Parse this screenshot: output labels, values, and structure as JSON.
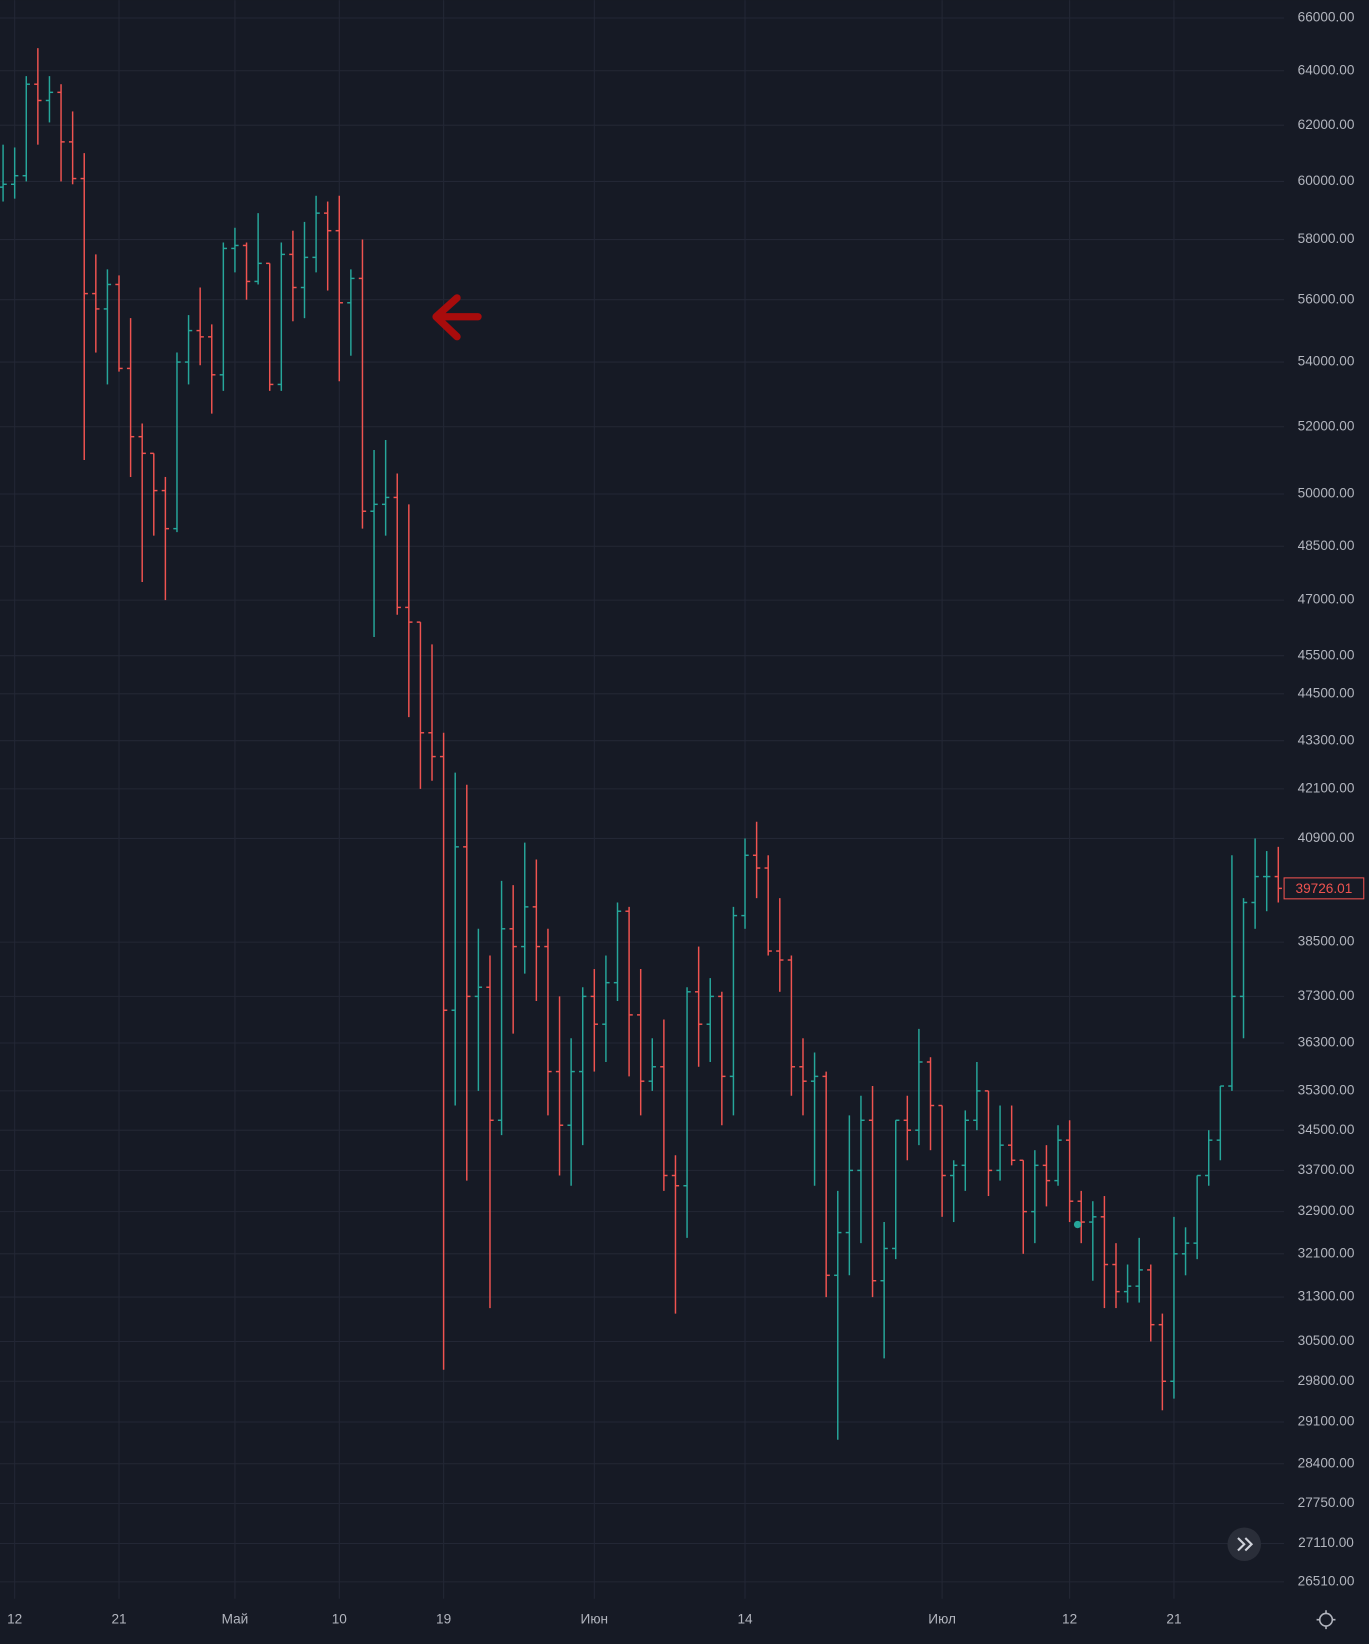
{
  "chart_data": {
    "type": "ohlc",
    "log_scale": true,
    "grid": true,
    "up_color": "#26a69a",
    "down_color": "#ef5350",
    "categories": [
      null,
      "12",
      null,
      null,
      null,
      null,
      null,
      null,
      null,
      null,
      "21",
      null,
      null,
      null,
      null,
      null,
      null,
      null,
      null,
      null,
      "Май",
      null,
      null,
      null,
      null,
      null,
      null,
      null,
      null,
      "10",
      null,
      null,
      null,
      null,
      null,
      null,
      null,
      null,
      "19",
      null,
      null,
      null,
      null,
      null,
      null,
      null,
      null,
      null,
      null,
      null,
      null,
      "Июн",
      null,
      null,
      null,
      null,
      null,
      null,
      null,
      null,
      null,
      null,
      null,
      null,
      "14",
      null,
      null,
      null,
      null,
      null,
      null,
      null,
      null,
      null,
      null,
      null,
      null,
      null,
      null,
      null,
      null,
      "Июл",
      null,
      null,
      null,
      null,
      null,
      null,
      null,
      null,
      null,
      null,
      "12",
      null,
      null,
      null,
      null,
      null,
      null,
      null,
      null,
      "21",
      null,
      null,
      null,
      null,
      null,
      null,
      null,
      null,
      null
    ],
    "open": [
      59800,
      59900,
      60200,
      63500,
      62900,
      63200,
      61400,
      60100,
      56200,
      55700,
      56500,
      53800,
      51700,
      51200,
      50100,
      49000,
      54000,
      55000,
      54800,
      53600,
      57700,
      57800,
      56600,
      57200,
      53300,
      57500,
      56400,
      57400,
      58900,
      58300,
      55900,
      56700,
      49500,
      49700,
      49900,
      46800,
      46400,
      43500,
      42900,
      37000,
      40700,
      37300,
      37500,
      34700,
      38800,
      38400,
      39300,
      38400,
      35700,
      34600,
      35700,
      37300,
      36700,
      37600,
      39200,
      36900,
      35500,
      35800,
      33600,
      33400,
      37400,
      36700,
      37300,
      35600,
      39100,
      40500,
      40200,
      38300,
      38100,
      35800,
      35500,
      35600,
      31700,
      32500,
      33700,
      34700,
      31600,
      32200,
      34700,
      34500,
      35900,
      35000,
      33600,
      33800,
      34700,
      35300,
      33700,
      34200,
      33900,
      32900,
      33800,
      33500,
      34300,
      33100,
      32700,
      32800,
      31900,
      31400,
      31500,
      31800,
      30800,
      29800,
      32100,
      32300,
      33600,
      34300,
      35400,
      37300,
      39400,
      40000,
      40000
    ],
    "high": [
      61300,
      61200,
      63800,
      64850,
      63800,
      63500,
      62500,
      61000,
      57500,
      57000,
      56800,
      55400,
      52100,
      51200,
      50500,
      54300,
      55500,
      56400,
      55200,
      57900,
      58400,
      57900,
      58900,
      57200,
      57900,
      58300,
      58600,
      59500,
      59300,
      59500,
      57000,
      58000,
      51300,
      51600,
      50600,
      49700,
      46400,
      45800,
      43500,
      42500,
      42200,
      38800,
      38200,
      39900,
      39800,
      40800,
      40400,
      38800,
      37300,
      36400,
      37500,
      37900,
      38200,
      39400,
      39300,
      37900,
      36400,
      36800,
      34000,
      37500,
      38400,
      37700,
      37400,
      39300,
      40900,
      41300,
      40500,
      39500,
      38200,
      36400,
      36100,
      35700,
      33300,
      34800,
      35200,
      35400,
      32700,
      34700,
      35200,
      36600,
      36000,
      35000,
      33900,
      34900,
      35900,
      35300,
      35000,
      35000,
      33900,
      34100,
      34200,
      34600,
      34700,
      33300,
      33100,
      33200,
      32300,
      31900,
      32400,
      31900,
      31000,
      32800,
      32600,
      33600,
      34500,
      35400,
      40500,
      39500,
      40900,
      40600,
      40700
    ],
    "low": [
      59300,
      59400,
      60000,
      61300,
      62100,
      60000,
      59900,
      51000,
      54300,
      53300,
      53700,
      50500,
      47500,
      48800,
      47000,
      48900,
      53300,
      53900,
      52400,
      53100,
      56900,
      56000,
      56500,
      53100,
      53100,
      55300,
      55400,
      56900,
      56300,
      53400,
      54200,
      49000,
      46000,
      48800,
      46600,
      43900,
      42100,
      42300,
      30000,
      35000,
      33500,
      35300,
      31100,
      34400,
      36500,
      37800,
      37200,
      34800,
      33600,
      33400,
      34200,
      35700,
      35900,
      37200,
      35600,
      34800,
      35300,
      33300,
      31000,
      32400,
      35800,
      35900,
      34600,
      34800,
      38800,
      39500,
      38200,
      37400,
      35200,
      34800,
      33400,
      31300,
      28800,
      31700,
      32300,
      31300,
      30200,
      32000,
      33900,
      34200,
      34100,
      32800,
      32700,
      33300,
      34500,
      33200,
      33500,
      33800,
      32100,
      32300,
      33000,
      33400,
      32700,
      32300,
      31600,
      31100,
      31100,
      31200,
      31200,
      30500,
      29300,
      29500,
      31700,
      32000,
      33400,
      33900,
      35300,
      36400,
      38800,
      39200,
      39400
    ],
    "close": [
      59900,
      60200,
      63500,
      62900,
      63200,
      61400,
      60100,
      56200,
      55700,
      56500,
      53800,
      51700,
      51200,
      50100,
      49000,
      54000,
      55000,
      54800,
      53600,
      57700,
      57800,
      56600,
      57200,
      53300,
      57500,
      56400,
      57400,
      58900,
      58300,
      55900,
      56700,
      49500,
      49700,
      49900,
      46800,
      46400,
      43500,
      42900,
      37000,
      40700,
      37300,
      37500,
      34700,
      38800,
      38400,
      39300,
      38400,
      35700,
      34600,
      35700,
      37300,
      36700,
      37600,
      39200,
      36900,
      35500,
      35800,
      33600,
      33400,
      37400,
      36700,
      37300,
      35600,
      39100,
      40500,
      40200,
      38300,
      38100,
      35800,
      35500,
      35600,
      31700,
      32500,
      33700,
      34700,
      31600,
      32200,
      34700,
      34500,
      35900,
      35000,
      33600,
      33800,
      34700,
      35300,
      33700,
      34200,
      33900,
      32900,
      33800,
      33500,
      34300,
      33100,
      32700,
      32800,
      31900,
      31400,
      31500,
      31800,
      30800,
      29800,
      32100,
      32300,
      33600,
      34300,
      35400,
      37300,
      39400,
      40000,
      40000,
      39726.01
    ],
    "ylim": [
      26250,
      66690
    ],
    "yticks": [
      {
        "value": 66000,
        "label": "66000.00"
      },
      {
        "value": 64000,
        "label": "64000.00"
      },
      {
        "value": 62000,
        "label": "62000.00"
      },
      {
        "value": 60000,
        "label": "60000.00"
      },
      {
        "value": 58000,
        "label": "58000.00"
      },
      {
        "value": 56000,
        "label": "56000.00"
      },
      {
        "value": 54000,
        "label": "54000.00"
      },
      {
        "value": 52000,
        "label": "52000.00"
      },
      {
        "value": 50000,
        "label": "50000.00"
      },
      {
        "value": 48500,
        "label": "48500.00"
      },
      {
        "value": 47000,
        "label": "47000.00"
      },
      {
        "value": 45500,
        "label": "45500.00"
      },
      {
        "value": 44500,
        "label": "44500.00"
      },
      {
        "value": 43300,
        "label": "43300.00"
      },
      {
        "value": 42100,
        "label": "42100.00"
      },
      {
        "value": 40900,
        "label": "40900.00"
      },
      {
        "value": 38500,
        "label": "38500.00"
      },
      {
        "value": 37300,
        "label": "37300.00"
      },
      {
        "value": 36300,
        "label": "36300.00"
      },
      {
        "value": 35300,
        "label": "35300.00"
      },
      {
        "value": 34500,
        "label": "34500.00"
      },
      {
        "value": 33700,
        "label": "33700.00"
      },
      {
        "value": 32900,
        "label": "32900.00"
      },
      {
        "value": 32100,
        "label": "32100.00"
      },
      {
        "value": 31300,
        "label": "31300.00"
      },
      {
        "value": 30500,
        "label": "30500.00"
      },
      {
        "value": 29800,
        "label": "29800.00"
      },
      {
        "value": 29100,
        "label": "29100.00"
      },
      {
        "value": 28400,
        "label": "28400.00"
      },
      {
        "value": 27750,
        "label": "27750.00"
      },
      {
        "value": 27110,
        "label": "27110.00"
      },
      {
        "value": 26510,
        "label": "26510.00"
      }
    ]
  }
}
